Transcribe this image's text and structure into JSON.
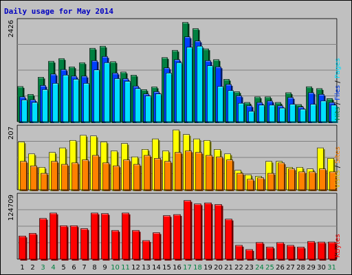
{
  "chart_data": [
    {
      "type": "bar",
      "title": "Daily usage for May 2014",
      "categories": [
        "1",
        "2",
        "3",
        "4",
        "5",
        "6",
        "7",
        "8",
        "9",
        "10",
        "11",
        "12",
        "13",
        "14",
        "15",
        "16",
        "17",
        "18",
        "19",
        "20",
        "21",
        "22",
        "23",
        "24",
        "25",
        "26",
        "27",
        "28",
        "29",
        "30",
        "31"
      ],
      "weekend_days": [
        "3",
        "4",
        "10",
        "11",
        "17",
        "18",
        "24",
        "25",
        "31"
      ],
      "ymax_label": "2426",
      "ymax": 2426,
      "legend": [
        "Pages",
        "Files",
        "Hits"
      ],
      "series": [
        {
          "name": "Hits",
          "color": "#008040",
          "values": [
            850,
            660,
            1075,
            1460,
            1525,
            1325,
            1425,
            1775,
            1825,
            1450,
            1200,
            1125,
            775,
            840,
            1550,
            1725,
            2400,
            2250,
            1760,
            1500,
            1025,
            725,
            465,
            600,
            600,
            465,
            700,
            415,
            845,
            800,
            560
          ]
        },
        {
          "name": "Files",
          "color": "#0040ff",
          "values": [
            600,
            530,
            875,
            1150,
            1260,
            1100,
            1100,
            1475,
            1575,
            1175,
            1040,
            860,
            670,
            725,
            1300,
            1500,
            2050,
            1950,
            1475,
            1325,
            900,
            625,
            385,
            465,
            500,
            385,
            585,
            355,
            700,
            660,
            465
          ]
        },
        {
          "name": "Pages",
          "color": "#00e0ff",
          "values": [
            525,
            465,
            775,
            925,
            1125,
            1025,
            925,
            1250,
            1425,
            1040,
            975,
            800,
            620,
            670,
            1175,
            1425,
            1800,
            1825,
            1350,
            850,
            750,
            445,
            250,
            400,
            400,
            330,
            420,
            300,
            420,
            500,
            400
          ]
        }
      ]
    },
    {
      "type": "bar",
      "categories": [
        "1",
        "2",
        "3",
        "4",
        "5",
        "6",
        "7",
        "8",
        "9",
        "10",
        "11",
        "12",
        "13",
        "14",
        "15",
        "16",
        "17",
        "18",
        "19",
        "20",
        "21",
        "22",
        "23",
        "24",
        "25",
        "26",
        "27",
        "28",
        "29",
        "30",
        "31"
      ],
      "ymax_label": "207",
      "ymax": 207,
      "legend": [
        "Sites",
        "Visits"
      ],
      "series": [
        {
          "name": "Visits",
          "color": "#ffff00",
          "values": [
            160,
            120,
            75,
            125,
            140,
            165,
            182,
            180,
            160,
            130,
            155,
            110,
            135,
            170,
            130,
            200,
            185,
            170,
            165,
            135,
            120,
            65,
            50,
            45,
            95,
            95,
            75,
            75,
            70,
            140,
            105
          ]
        },
        {
          "name": "Sites",
          "color": "#ff8000",
          "values": [
            95,
            80,
            55,
            95,
            85,
            90,
            100,
            115,
            90,
            80,
            100,
            85,
            115,
            105,
            95,
            125,
            130,
            125,
            115,
            110,
            100,
            55,
            35,
            40,
            55,
            90,
            70,
            60,
            60,
            70,
            60
          ]
        }
      ]
    },
    {
      "type": "bar",
      "categories": [
        "1",
        "2",
        "3",
        "4",
        "5",
        "6",
        "7",
        "8",
        "9",
        "10",
        "11",
        "12",
        "13",
        "14",
        "15",
        "16",
        "17",
        "18",
        "19",
        "20",
        "21",
        "22",
        "23",
        "24",
        "25",
        "26",
        "27",
        "28",
        "29",
        "30",
        "31"
      ],
      "ymax_label": "124709",
      "ymax": 124709,
      "legend": [
        "KBytes"
      ],
      "series": [
        {
          "name": "KBytes",
          "color": "#ff0000",
          "values": [
            45700,
            51000,
            80500,
            91000,
            66000,
            66000,
            60300,
            91000,
            90000,
            56700,
            91000,
            56700,
            36700,
            52200,
            86000,
            88000,
            115700,
            109000,
            111000,
            107800,
            79000,
            27300,
            19000,
            33000,
            24000,
            32800,
            27300,
            24000,
            35000,
            33800,
            33800
          ]
        }
      ]
    }
  ]
}
